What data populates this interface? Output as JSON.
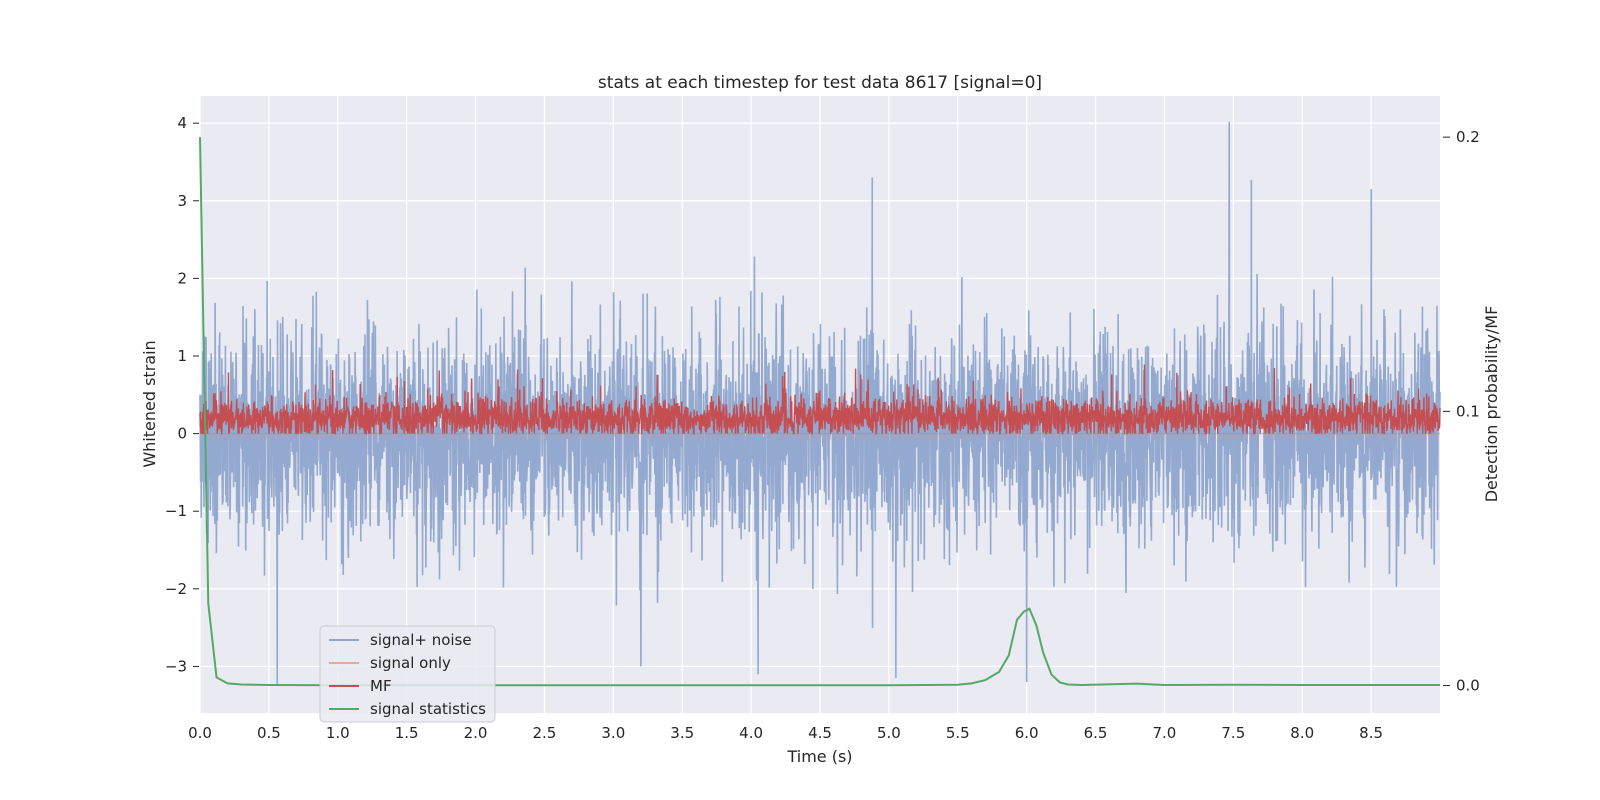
{
  "chart_data": {
    "type": "line",
    "title": "stats at each timestep for test data 8617 [signal=0]",
    "xlabel": "Time (s)",
    "ylabel": "Whitened strain",
    "ylabel_right": "Detection probability/MF",
    "xlim": [
      0,
      9.0
    ],
    "ylim": [
      -3.6,
      4.35
    ],
    "ylim_right": [
      -0.01,
      0.215
    ],
    "x_ticks": [
      0.0,
      0.5,
      1.0,
      1.5,
      2.0,
      2.5,
      3.0,
      3.5,
      4.0,
      4.5,
      5.0,
      5.5,
      6.0,
      6.5,
      7.0,
      7.5,
      8.0,
      8.5
    ],
    "x_tick_labels": [
      "0.0",
      "0.5",
      "1.0",
      "1.5",
      "2.0",
      "2.5",
      "3.0",
      "3.5",
      "4.0",
      "4.5",
      "5.0",
      "5.5",
      "6.0",
      "6.5",
      "7.0",
      "7.5",
      "8.0",
      "8.5"
    ],
    "y_ticks": [
      4,
      3,
      2,
      1,
      0,
      -1,
      -2,
      -3
    ],
    "y_tick_labels": [
      "4",
      "3",
      "2",
      "1",
      "0",
      "−1",
      "−2",
      "−3"
    ],
    "y_right_ticks": [
      0.2,
      0.1,
      0.0
    ],
    "y_right_tick_labels": [
      "0.2",
      "0.1",
      "0.0"
    ],
    "grid": true,
    "legend_position": "lower-left",
    "series": [
      {
        "name": "signal+ noise",
        "color": "#8fa5cc",
        "axis": "left",
        "samples": 4096,
        "std": 0.95,
        "peaks": [
          {
            "x": 0.56,
            "y": -3.25
          },
          {
            "x": 3.2,
            "y": -3.0
          },
          {
            "x": 4.05,
            "y": -3.1
          },
          {
            "x": 4.88,
            "y": 3.3
          },
          {
            "x": 5.05,
            "y": -3.15
          },
          {
            "x": 6.0,
            "y": -3.2
          },
          {
            "x": 7.47,
            "y": 4.02
          },
          {
            "x": 7.63,
            "y": 3.27
          },
          {
            "x": 8.5,
            "y": 3.15
          }
        ]
      },
      {
        "name": "signal only",
        "color": "#dd8452",
        "axis": "left",
        "y": 0.0
      },
      {
        "name": "MF",
        "color": "#c44e52",
        "axis": "left",
        "samples": 4096,
        "center": 0.2
      },
      {
        "name": "signal statistics",
        "color": "#55a868",
        "axis": "right",
        "x": [
          0.0,
          0.06,
          0.12,
          0.2,
          0.3,
          0.5,
          1.0,
          2.0,
          3.0,
          4.0,
          5.0,
          5.5,
          5.6,
          5.7,
          5.8,
          5.87,
          5.93,
          5.98,
          6.02,
          6.07,
          6.12,
          6.18,
          6.24,
          6.3,
          6.4,
          6.8,
          7.0,
          7.5,
          8.0,
          8.5,
          9.0
        ],
        "y": [
          0.2,
          0.03,
          0.003,
          0.0008,
          0.0004,
          0.0002,
          0.0001,
          0.0001,
          0.0001,
          0.0001,
          0.0001,
          0.0003,
          0.0008,
          0.002,
          0.005,
          0.011,
          0.024,
          0.027,
          0.028,
          0.022,
          0.012,
          0.004,
          0.0012,
          0.0004,
          0.0002,
          0.0007,
          0.0002,
          0.0003,
          0.0002,
          0.0002,
          0.0002
        ]
      }
    ]
  }
}
